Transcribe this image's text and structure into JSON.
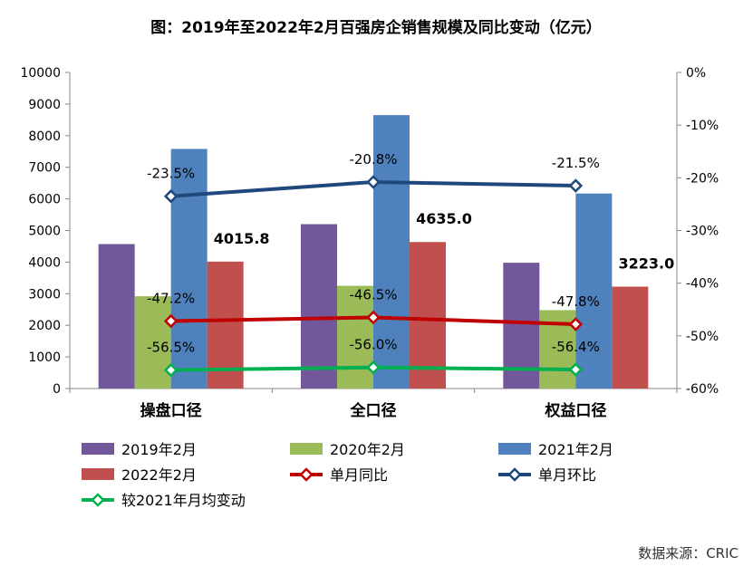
{
  "chart_data": {
    "type": "bar",
    "title": "图：2019年至2022年2月百强房企销售规模及同比变动（亿元）",
    "categories": [
      "操盘口径",
      "全口径",
      "权益口径"
    ],
    "ylim": [
      0,
      10000
    ],
    "yticks": [
      "0",
      "1000",
      "2000",
      "3000",
      "4000",
      "5000",
      "6000",
      "7000",
      "8000",
      "9000",
      "10000"
    ],
    "y2lim": [
      -60,
      0
    ],
    "y2ticks": [
      "-60%",
      "-50%",
      "-40%",
      "-30%",
      "-20%",
      "-10%",
      "0%"
    ],
    "grid": false,
    "legend_placement": "bottom",
    "series": [
      {
        "name": "2019年2月",
        "type": "bar",
        "color": "#72589A",
        "values": [
          4570,
          5200,
          3980
        ]
      },
      {
        "name": "2020年2月",
        "type": "bar",
        "color": "#9BBB59",
        "values": [
          2920,
          3250,
          2480
        ]
      },
      {
        "name": "2021年2月",
        "type": "bar",
        "color": "#4F81BD",
        "values": [
          7580,
          8650,
          6170
        ]
      },
      {
        "name": "2022年2月",
        "type": "bar",
        "color": "#C0504D",
        "values": [
          4015.8,
          4635.0,
          3223.0
        ],
        "labels": [
          "4015.8",
          "4635.0",
          "3223.0"
        ]
      },
      {
        "name": "单月同比",
        "type": "line",
        "axis": "right",
        "color": "#C00000",
        "values": [
          -47.2,
          -46.5,
          -47.8
        ],
        "labels": [
          "-47.2%",
          "-46.5%",
          "-47.8%"
        ]
      },
      {
        "name": "单月环比",
        "type": "line",
        "axis": "right",
        "color": "#1F497D",
        "values": [
          -23.5,
          -20.8,
          -21.5
        ],
        "labels": [
          "-23.5%",
          "-20.8%",
          "-21.5%"
        ]
      },
      {
        "name": "较2021年月均变动",
        "type": "line",
        "axis": "right",
        "color": "#00B050",
        "values": [
          -56.5,
          -56.0,
          -56.4
        ],
        "labels": [
          "-56.5%",
          "-56.0%",
          "-56.4%"
        ]
      }
    ]
  },
  "source": "数据来源：CRIC"
}
